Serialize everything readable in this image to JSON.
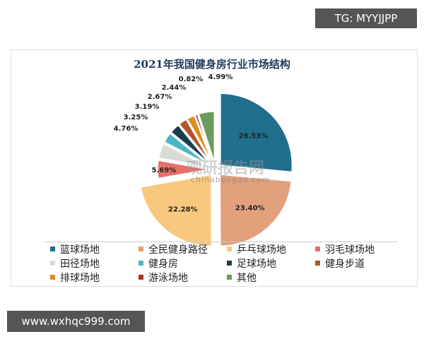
{
  "watermark_top": "TG: MYYJJPP",
  "watermark_bottom": "www.wxhqc999.com",
  "logo_text": "观研报告网",
  "logo_url_text": "chinabaogao.com",
  "chart_data": {
    "type": "pie",
    "title": "2021年我国健身房行业市场结构",
    "legend_position": "bottom",
    "categories": [
      "篮球场地",
      "全民健身路径",
      "乒乓球场地",
      "羽毛球场地",
      "田径场地",
      "健身房",
      "足球场地",
      "健身步道",
      "排球场地",
      "游泳场地",
      "其他"
    ],
    "values": [
      26.53,
      23.4,
      22.28,
      5.69,
      4.76,
      3.25,
      3.19,
      2.67,
      2.44,
      0.82,
      4.99
    ],
    "labels": [
      "26.53%",
      "23.40%",
      "22.28%",
      "5.69%",
      "4.76%",
      "3.25%",
      "3.19%",
      "2.67%",
      "2.44%",
      "0.82%",
      "4.99%"
    ],
    "colors": [
      "#1f6e8c",
      "#e2a07c",
      "#f8c87e",
      "#e6706a",
      "#d8ddd3",
      "#4cb5c5",
      "#1b3e4f",
      "#b2542c",
      "#e38a1c",
      "#b0302a",
      "#6b9b5f"
    ]
  }
}
